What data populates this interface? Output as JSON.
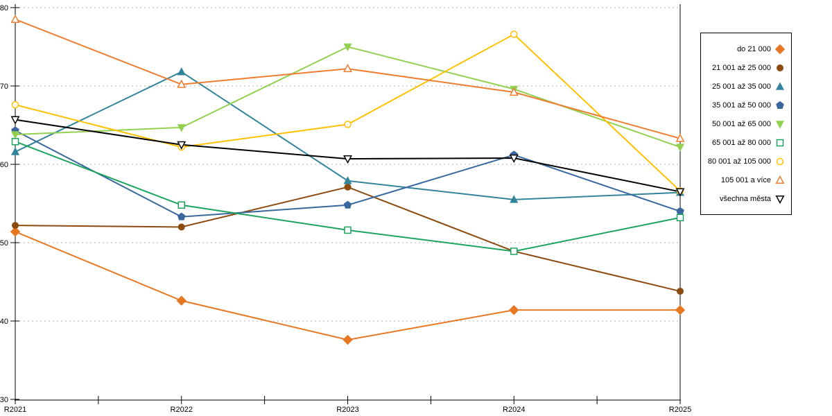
{
  "chart_data": {
    "type": "line",
    "title": "",
    "xlabel": "",
    "ylabel": "",
    "categories": [
      "R2021",
      "R2022",
      "R2023",
      "R2024",
      "R2025"
    ],
    "y_ticks": [
      80,
      70,
      60,
      50,
      40,
      30
    ],
    "ylim": [
      30,
      80
    ],
    "grid": "horizontal-dashed",
    "grid_color": "#b3b3b3",
    "axis_color": "#000000",
    "legend_position": "right-outside-box",
    "series": [
      {
        "name": "do 21 000",
        "color": "#E87722",
        "marker": "diamond",
        "filled": true,
        "values": [
          51.4,
          42.6,
          37.6,
          41.4,
          41.4
        ]
      },
      {
        "name": "21 001 až 25 000",
        "color": "#8C4B10",
        "marker": "circle",
        "filled": true,
        "values": [
          52.2,
          52.0,
          57.1,
          48.9,
          43.8
        ]
      },
      {
        "name": "25 001 až 35 000",
        "color": "#31849B",
        "marker": "triangle-up",
        "filled": true,
        "values": [
          61.6,
          71.8,
          57.9,
          55.5,
          56.4
        ]
      },
      {
        "name": "35 001 až 50 000",
        "color": "#38689E",
        "marker": "pentagon",
        "filled": true,
        "values": [
          64.3,
          53.3,
          54.8,
          61.2,
          54.0
        ]
      },
      {
        "name": "50 001 až 65 000",
        "color": "#92D050",
        "marker": "triangle-down",
        "filled": true,
        "values": [
          63.8,
          64.7,
          75.0,
          69.6,
          62.2
        ]
      },
      {
        "name": "65 001 až 80 000",
        "color": "#1CA35F",
        "marker": "square",
        "filled": false,
        "values": [
          62.9,
          54.8,
          51.6,
          48.9,
          53.2
        ]
      },
      {
        "name": "80 001 až 105 000",
        "color": "#FFC000",
        "marker": "circle",
        "filled": false,
        "values": [
          67.6,
          62.2,
          65.1,
          76.6,
          56.6
        ]
      },
      {
        "name": "105 001 a více",
        "color": "#ED7D31",
        "marker": "triangle-up",
        "filled": false,
        "values": [
          78.5,
          70.2,
          72.2,
          69.2,
          63.3
        ]
      },
      {
        "name": "všechna města",
        "color": "#000000",
        "marker": "triangle-down",
        "filled": false,
        "values": [
          65.7,
          62.5,
          60.7,
          60.8,
          56.5
        ]
      }
    ]
  }
}
